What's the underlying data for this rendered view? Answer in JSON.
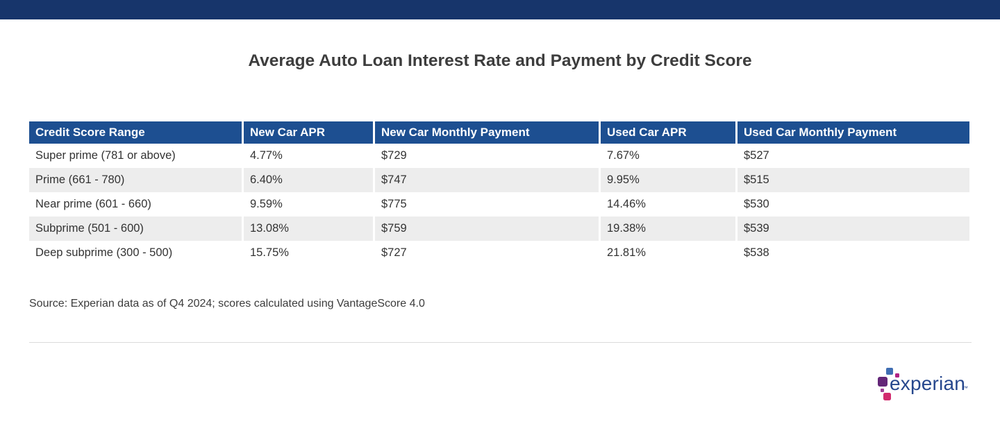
{
  "page": {
    "title": "Average Auto Loan Interest Rate and Payment by Credit Score",
    "source_note": "Source: Experian data as of Q4 2024; scores calculated using VantageScore 4.0"
  },
  "colors": {
    "top_bar": "#17356B",
    "header_bg": "#1D4F91",
    "header_text": "#FFFFFF",
    "row_alt_bg": "#EDEDED",
    "body_text": "#333333",
    "title_text": "#3D3D3D",
    "source_text": "#3C3C3C",
    "divider": "#DBDBDB",
    "logo_wordmark": "#26478D",
    "logo_blue": "#406EB3",
    "logo_purple": "#632678",
    "logo_magenta": "#B12384",
    "logo_magenta2": "#A03E97",
    "logo_pink": "#D12A6E"
  },
  "chart_data": {
    "type": "table",
    "title": "Average Auto Loan Interest Rate and Payment by Credit Score",
    "columns": [
      "Credit Score Range",
      "New Car APR",
      "New Car Monthly Payment",
      "Used Car APR",
      "Used Car Monthly Payment"
    ],
    "rows": [
      [
        "Super prime (781 or above)",
        "4.77%",
        "$729",
        "7.67%",
        "$527"
      ],
      [
        "Prime (661 - 780)",
        "6.40%",
        "$747",
        "9.95%",
        "$515"
      ],
      [
        "Near prime (601 - 660)",
        "9.59%",
        "$775",
        "14.46%",
        "$530"
      ],
      [
        "Subprime (501 - 600)",
        "13.08%",
        "$759",
        "19.38%",
        "$539"
      ],
      [
        "Deep subprime (300 - 500)",
        "15.75%",
        "$727",
        "21.81%",
        "$538"
      ]
    ],
    "source": "Source: Experian data as of Q4 2024; scores calculated using VantageScore 4.0",
    "layout_hints": {
      "header_style": "solid blue with white bold text",
      "row_striping": "rows 2 and 4 shaded light gray",
      "column_separators": "thin white vertical gaps"
    }
  },
  "table": {
    "columns": [
      "Credit Score Range",
      "New Car APR",
      "New Car Monthly Payment",
      "Used Car APR",
      "Used Car Monthly Payment"
    ],
    "rows": [
      [
        "Super prime (781 or above)",
        "4.77%",
        "$729",
        "7.67%",
        "$527"
      ],
      [
        "Prime (661 - 780)",
        "6.40%",
        "$747",
        "9.95%",
        "$515"
      ],
      [
        "Near prime (601 - 660)",
        "9.59%",
        "$775",
        "14.46%",
        "$530"
      ],
      [
        "Subprime (501 - 600)",
        "13.08%",
        "$759",
        "19.38%",
        "$539"
      ],
      [
        "Deep subprime (300 - 500)",
        "15.75%",
        "$727",
        "21.81%",
        "$538"
      ]
    ]
  },
  "footer": {
    "logo_text": "experian",
    "trademark": "TM"
  }
}
